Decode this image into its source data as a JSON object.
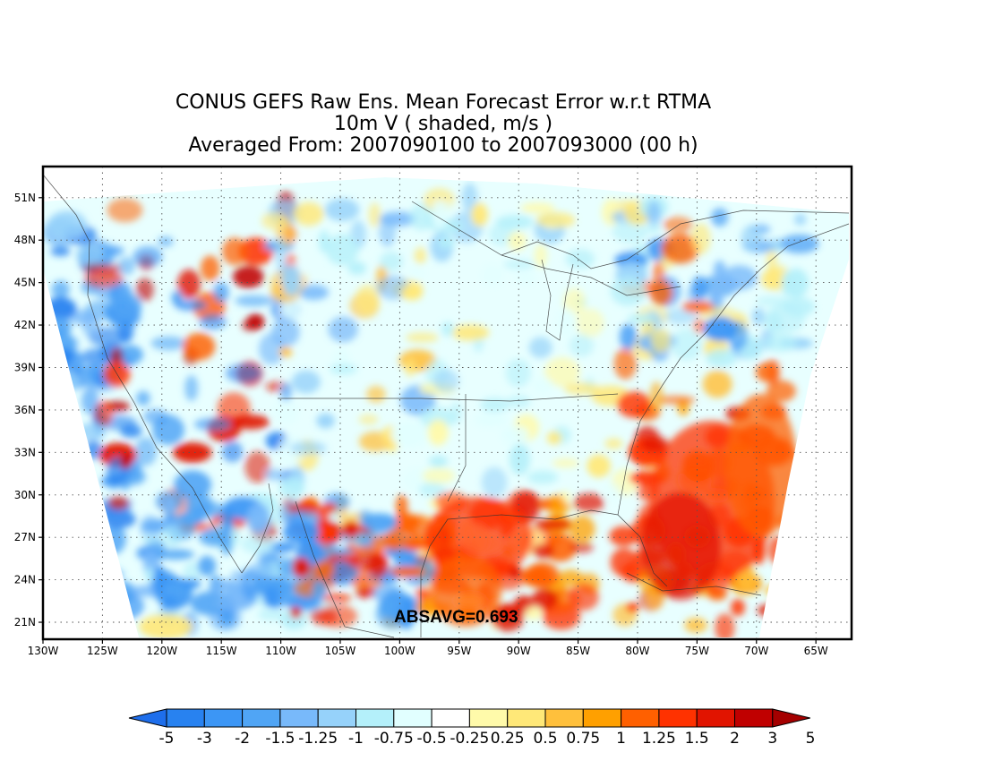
{
  "title": {
    "line1": "CONUS GEFS Raw Ens. Mean Forecast Error w.r.t RTMA",
    "line2": "10m V ( shaded, m/s )",
    "line3": "Averaged From: 2007090100 to 2007093000 (00 h)"
  },
  "stat_label": "ABSAVG=0.693",
  "map": {
    "lon_range": [
      -130,
      -62
    ],
    "lat_range": [
      19.8,
      53.2
    ],
    "lon_ticks": [
      "130W",
      "125W",
      "120W",
      "115W",
      "110W",
      "105W",
      "100W",
      "95W",
      "90W",
      "85W",
      "80W",
      "75W",
      "70W",
      "65W"
    ],
    "lon_values": [
      -130,
      -125,
      -120,
      -115,
      -110,
      -105,
      -100,
      -95,
      -90,
      -85,
      -80,
      -75,
      -70,
      -65
    ],
    "lat_ticks": [
      "21N",
      "24N",
      "27N",
      "30N",
      "33N",
      "36N",
      "39N",
      "42N",
      "45N",
      "48N",
      "51N"
    ],
    "lat_values": [
      21,
      24,
      27,
      30,
      33,
      36,
      39,
      42,
      45,
      48,
      51
    ],
    "grid": "dotted"
  },
  "colorbar": {
    "labels": [
      "-5",
      "-3",
      "-2",
      "-1.5",
      "-1.25",
      "-1",
      "-0.75",
      "-0.5",
      "-0.25",
      "0.25",
      "0.5",
      "0.75",
      "1",
      "1.25",
      "1.5",
      "2",
      "3",
      "5"
    ],
    "colors": [
      "#1e6eeb",
      "#2882f0",
      "#3c96f5",
      "#50a5f5",
      "#78b9fa",
      "#96d2fa",
      "#b4f0fa",
      "#e1ffff",
      "#ffffff",
      "#fffaaa",
      "#ffe878",
      "#ffc03c",
      "#ffa000",
      "#ff6000",
      "#ff3200",
      "#e11400",
      "#c00000",
      "#a50000"
    ],
    "extend": "both"
  }
}
